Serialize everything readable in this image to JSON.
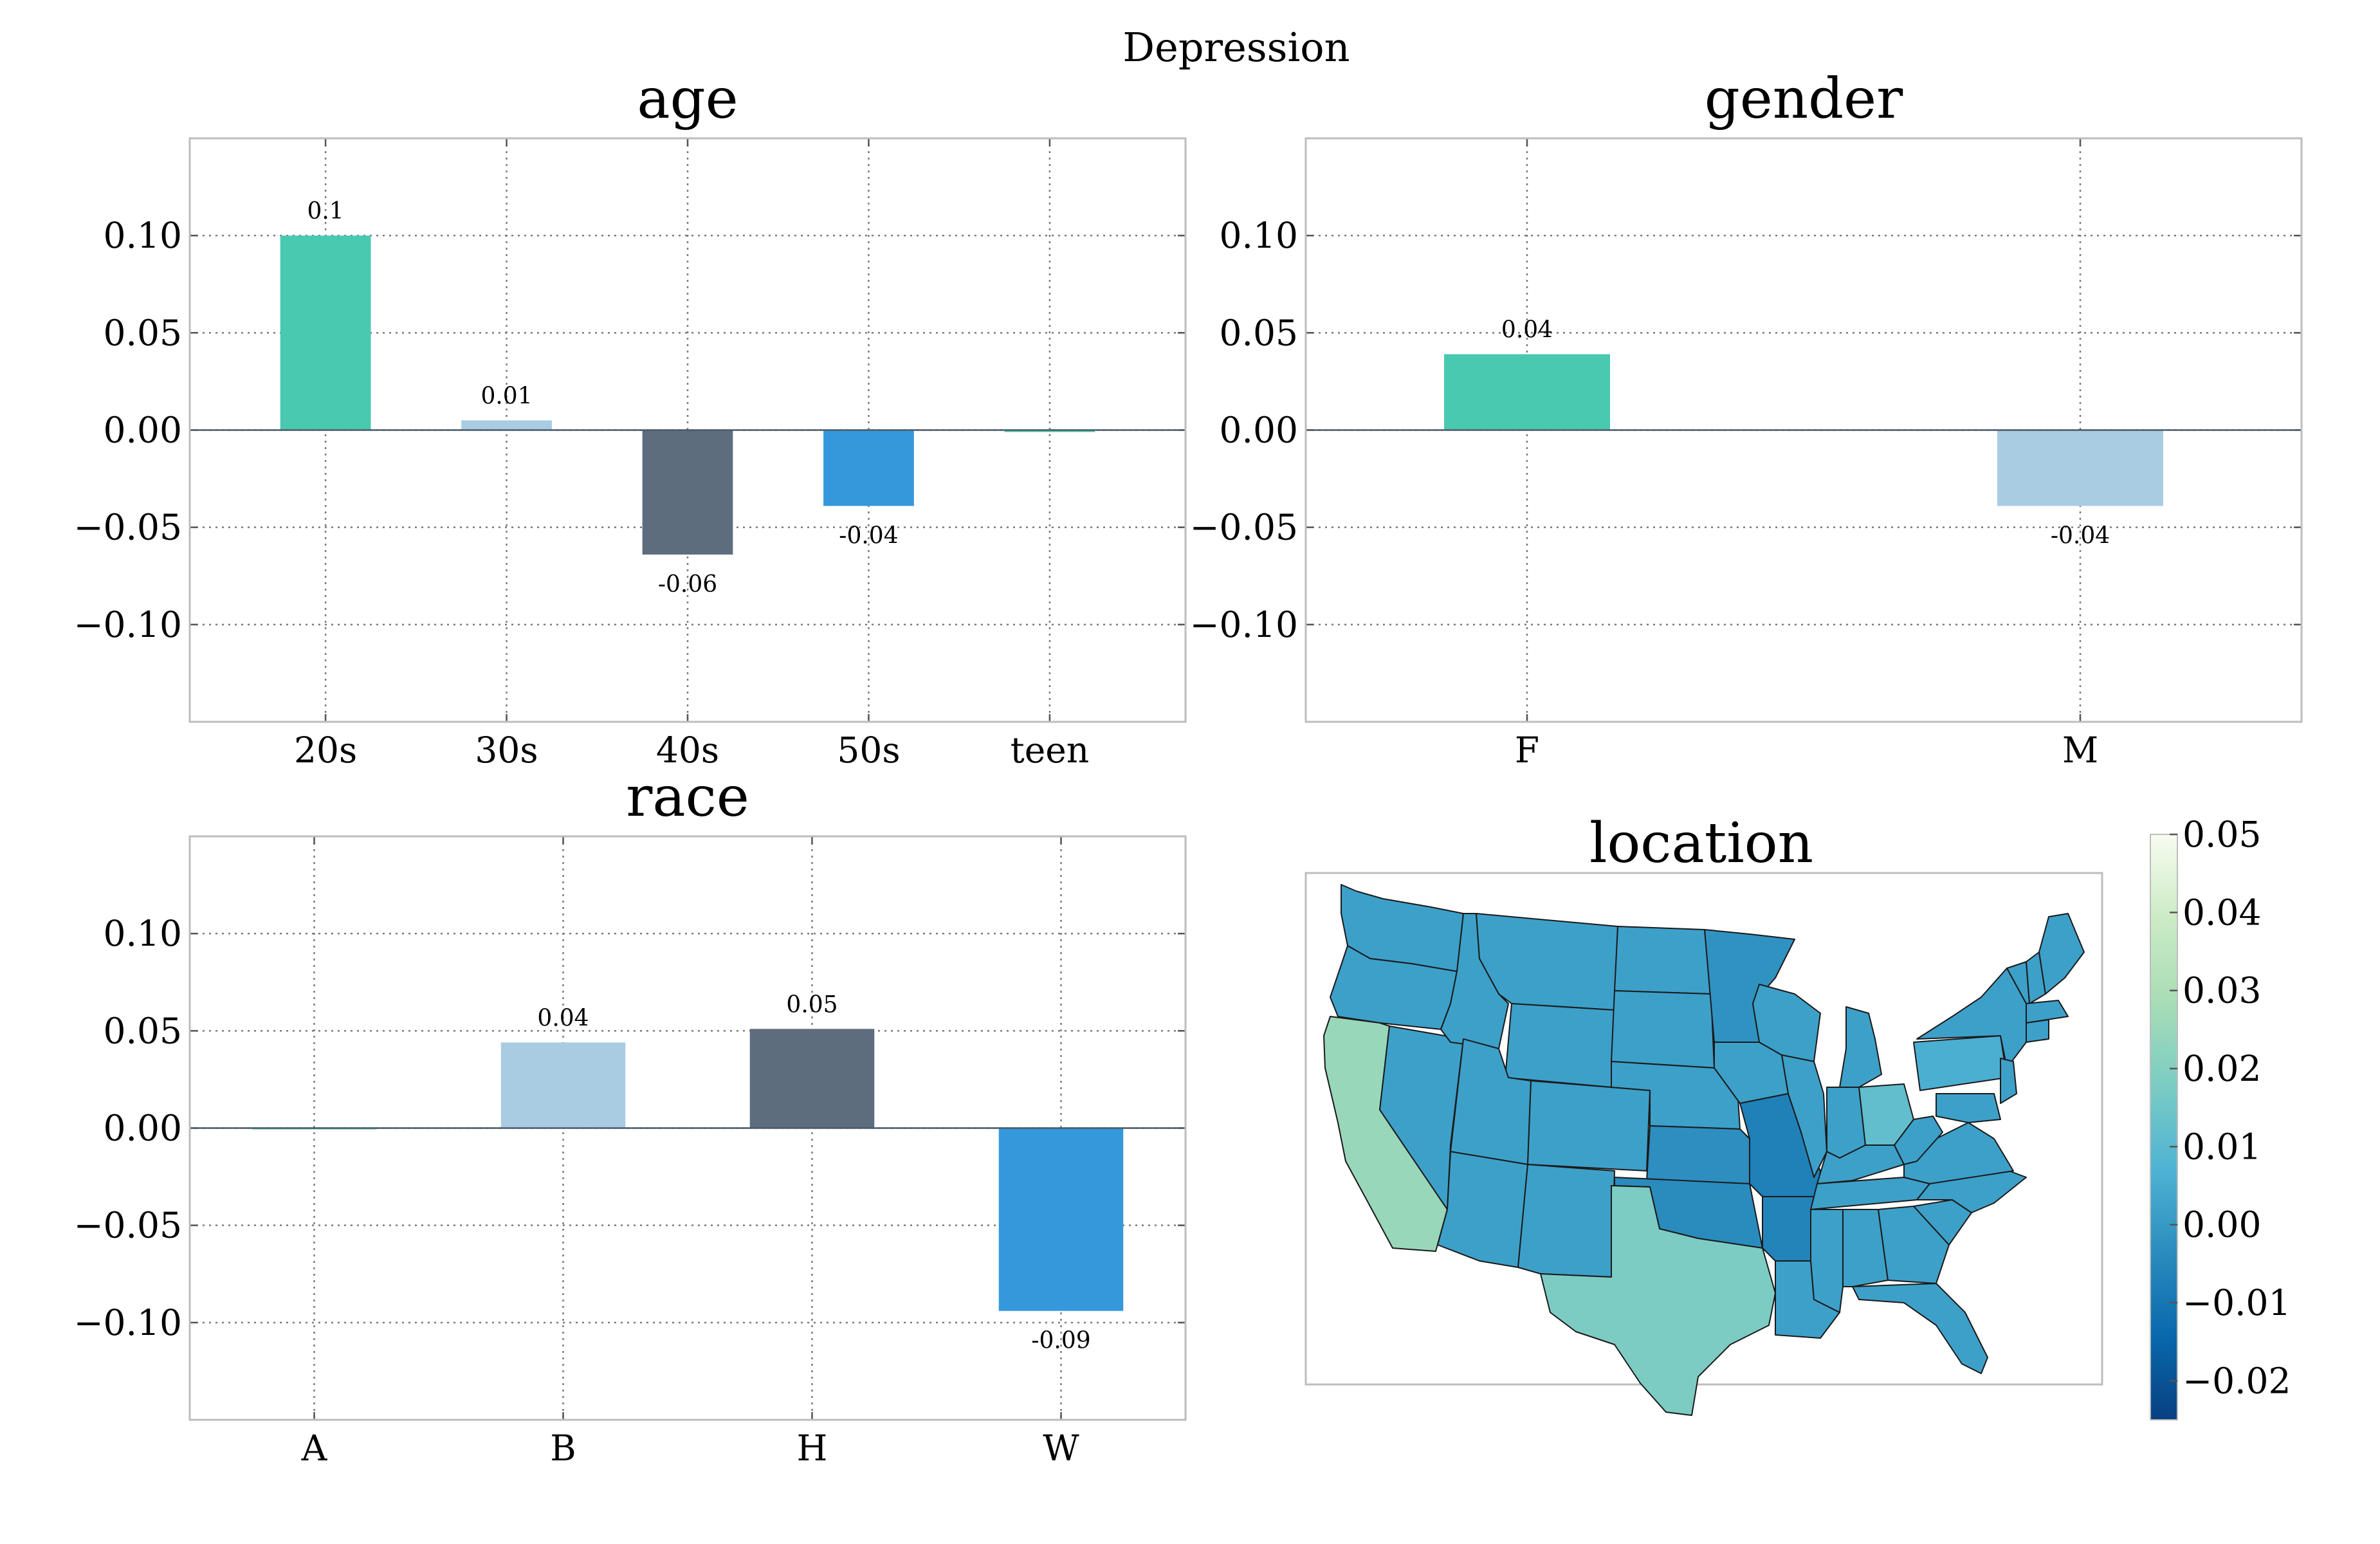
{
  "figure": {
    "title": "Depression"
  },
  "chart_data": [
    {
      "type": "bar",
      "title": "age",
      "categories": [
        "20s",
        "30s",
        "40s",
        "50s",
        "teen"
      ],
      "values": [
        0.1,
        0.005,
        -0.064,
        -0.039,
        -0.001
      ],
      "data_labels": [
        "0.1",
        "0.01",
        "-0.06",
        "-0.04",
        ""
      ],
      "colors": [
        "#48c9b0",
        "#a9cce3",
        "#5d6d7e",
        "#3498db",
        "#48c9b0"
      ],
      "ylim": [
        -0.15,
        0.15
      ],
      "yticks": [
        0.1,
        0.05,
        0.0,
        -0.05,
        -0.1
      ],
      "ytick_labels": [
        "0.10",
        "0.05",
        "0.00",
        "−0.05",
        "−0.10"
      ],
      "grid": true
    },
    {
      "type": "bar",
      "title": "gender",
      "categories": [
        "F",
        "M"
      ],
      "values": [
        0.039,
        -0.039
      ],
      "data_labels": [
        "0.04",
        "-0.04"
      ],
      "colors": [
        "#48c9b0",
        "#a9cce3"
      ],
      "ylim": [
        -0.15,
        0.15
      ],
      "yticks": [
        0.1,
        0.05,
        0.0,
        -0.05,
        -0.1
      ],
      "ytick_labels": [
        "0.10",
        "0.05",
        "0.00",
        "−0.05",
        "−0.10"
      ],
      "grid": true
    },
    {
      "type": "bar",
      "title": "race",
      "categories": [
        "A",
        "B",
        "H",
        "W"
      ],
      "values": [
        0.0,
        0.044,
        0.051,
        -0.094
      ],
      "data_labels": [
        "",
        "0.04",
        "0.05",
        "-0.09"
      ],
      "colors": [
        "#48c9b0",
        "#a9cce3",
        "#5d6d7e",
        "#3498db"
      ],
      "ylim": [
        -0.15,
        0.15
      ],
      "yticks": [
        0.1,
        0.05,
        0.0,
        -0.05,
        -0.1
      ],
      "ytick_labels": [
        "0.10",
        "0.05",
        "0.00",
        "−0.05",
        "−0.10"
      ],
      "grid": true
    },
    {
      "type": "heatmap",
      "title": "location",
      "colorbar": {
        "range": [
          -0.025,
          0.05
        ],
        "ticks": [
          0.05,
          0.04,
          0.03,
          0.02,
          0.01,
          0.0,
          -0.01,
          -0.02
        ],
        "tick_labels": [
          "0.05",
          "0.04",
          "0.03",
          "0.02",
          "0.01",
          "0.00",
          "−0.01",
          "−0.02"
        ],
        "stops": [
          "#f7fcf0",
          "#ccebc5",
          "#a8ddb5",
          "#7bccc4",
          "#4eb3d3",
          "#2b8cbe",
          "#0868ac",
          "#084081"
        ]
      },
      "regions": [
        {
          "name": "California",
          "value": 0.025
        },
        {
          "name": "Texas",
          "value": 0.018
        },
        {
          "name": "Ohio",
          "value": 0.012
        },
        {
          "name": "Pennsylvania",
          "value": 0.006
        },
        {
          "name": "Missouri",
          "value": -0.007
        },
        {
          "name": "Arkansas",
          "value": -0.006
        },
        {
          "name": "Oklahoma",
          "value": -0.004
        },
        {
          "name": "Minnesota",
          "value": -0.002
        },
        {
          "name": "Kansas",
          "value": -0.003
        }
      ],
      "default_value": 0.002
    }
  ]
}
